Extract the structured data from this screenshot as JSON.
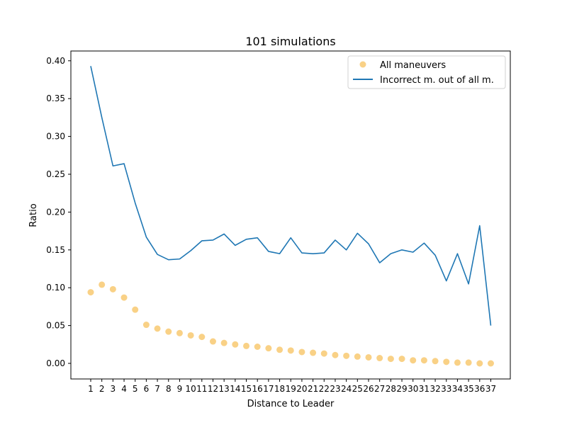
{
  "chart_data": {
    "type": "line+scatter",
    "title": "101 simulations",
    "xlabel": "Distance to Leader",
    "ylabel": "Ratio",
    "categories": [
      "1",
      "2",
      "3",
      "4",
      "5",
      "6",
      "7",
      "8",
      "9",
      "10",
      "11",
      "12",
      "13",
      "14",
      "15",
      "16",
      "17",
      "18",
      "19",
      "20",
      "21",
      "22",
      "23",
      "24",
      "25",
      "26",
      "27",
      "28",
      "29",
      "30",
      "31",
      "32",
      "33",
      "34",
      "35",
      "36",
      "37"
    ],
    "ylim": [
      -0.02,
      0.42
    ],
    "yticks": [
      "0.00",
      "0.05",
      "0.10",
      "0.15",
      "0.20",
      "0.25",
      "0.30",
      "0.35",
      "0.40"
    ],
    "grid": false,
    "legend_position": "top-right",
    "series": [
      {
        "name": "All maneuvers",
        "kind": "scatter",
        "color": "#f5b335",
        "values": [
          0.094,
          0.104,
          0.098,
          0.087,
          0.071,
          0.051,
          0.046,
          0.042,
          0.04,
          0.037,
          0.035,
          0.029,
          0.027,
          0.025,
          0.023,
          0.022,
          0.02,
          0.018,
          0.017,
          0.015,
          0.014,
          0.013,
          0.011,
          0.01,
          0.009,
          0.008,
          0.007,
          0.006,
          0.006,
          0.004,
          0.004,
          0.003,
          0.002,
          0.001,
          0.001,
          0.0,
          0.0
        ]
      },
      {
        "name": "Incorrect m. out of all m.",
        "kind": "line",
        "color": "#1f77b4",
        "values": [
          0.393,
          0.325,
          0.261,
          0.264,
          0.212,
          0.167,
          0.144,
          0.137,
          0.138,
          0.149,
          0.162,
          0.163,
          0.171,
          0.156,
          0.164,
          0.166,
          0.148,
          0.145,
          0.166,
          0.146,
          0.145,
          0.146,
          0.163,
          0.15,
          0.172,
          0.158,
          0.133,
          0.145,
          0.15,
          0.147,
          0.159,
          0.143,
          0.109,
          0.145,
          0.105,
          0.182,
          0.05
        ]
      }
    ]
  }
}
